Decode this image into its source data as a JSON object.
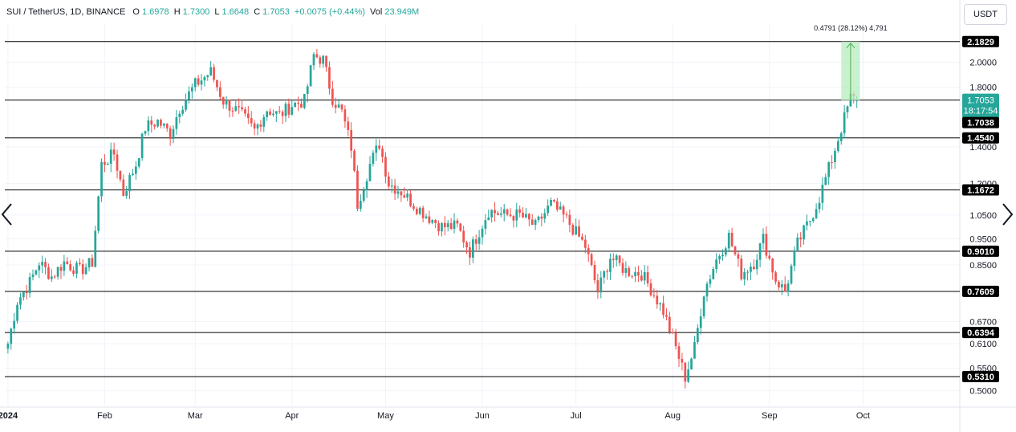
{
  "header": {
    "symbol": "SUI / TetherUS, 1D, BINANCE",
    "o_label": "O",
    "o_value": "1.6978",
    "h_label": "H",
    "h_value": "1.7300",
    "l_label": "L",
    "l_value": "1.6648",
    "c_label": "C",
    "c_value": "1.7053",
    "change": "+0.0075 (+0.44%)",
    "vol_label": "Vol",
    "vol_value": "23.949M"
  },
  "currency_button": "USDT",
  "colors": {
    "up": "#26a69a",
    "down": "#ef5350",
    "level_line": "#000000",
    "measure_fill": "#b7ecbf",
    "measure_line": "#4caf50"
  },
  "chart_data": {
    "type": "candlestick",
    "y_axis_ticks": [
      "2.0000",
      "1.8000",
      "1.4000",
      "1.2000",
      "1.0500",
      "0.9500",
      "0.8500",
      "0.6700",
      "0.6100",
      "0.5500",
      "0.5000"
    ],
    "x_axis_ticks": [
      "2024",
      "Feb",
      "Mar",
      "Apr",
      "May",
      "Jun",
      "Jul",
      "Aug",
      "Sep",
      "Oct"
    ],
    "x_ticks_dates": [
      "2024-01-01",
      "2024-02-01",
      "2024-03-01",
      "2024-04-01",
      "2024-05-01",
      "2024-06-01",
      "2024-07-01",
      "2024-08-01",
      "2024-09-01",
      "2024-10-01"
    ],
    "horizontal_levels": [
      "2.1829",
      "1.7053",
      "1.7038",
      "1.4540",
      "1.1672",
      "0.9010",
      "0.7609",
      "0.6394",
      "0.5310"
    ],
    "horizontal_level_values": [
      2.1829,
      1.7053,
      1.454,
      1.1672,
      0.901,
      0.7609,
      0.6394,
      0.531
    ],
    "current_price": "1.7053",
    "countdown": "18:17:54",
    "measure_label": "0.4791 (28.12%) 4,791",
    "measure_from": 1.7038,
    "measure_to": 2.1829,
    "measure_start_date": "2024-09-24",
    "measure_end_date": "2024-09-30",
    "y_range": [
      0.47,
      2.35
    ],
    "y_scale": "log",
    "close_anchors": [
      [
        "2024-01-01",
        0.61
      ],
      [
        "2024-01-04",
        0.73
      ],
      [
        "2024-01-08",
        0.79
      ],
      [
        "2024-01-11",
        0.86
      ],
      [
        "2024-01-15",
        0.81
      ],
      [
        "2024-01-19",
        0.86
      ],
      [
        "2024-01-24",
        0.83
      ],
      [
        "2024-01-28",
        0.86
      ],
      [
        "2024-01-31",
        1.3
      ],
      [
        "2024-02-04",
        1.36
      ],
      [
        "2024-02-07",
        1.15
      ],
      [
        "2024-02-11",
        1.3
      ],
      [
        "2024-02-14",
        1.52
      ],
      [
        "2024-02-18",
        1.56
      ],
      [
        "2024-02-22",
        1.48
      ],
      [
        "2024-02-25",
        1.65
      ],
      [
        "2024-03-01",
        1.82
      ],
      [
        "2024-03-06",
        1.92
      ],
      [
        "2024-03-10",
        1.7
      ],
      [
        "2024-03-15",
        1.62
      ],
      [
        "2024-03-20",
        1.5
      ],
      [
        "2024-03-24",
        1.64
      ],
      [
        "2024-03-28",
        1.6
      ],
      [
        "2024-04-01",
        1.67
      ],
      [
        "2024-04-05",
        1.7
      ],
      [
        "2024-04-08",
        2.06
      ],
      [
        "2024-04-11",
        2.02
      ],
      [
        "2024-04-14",
        1.72
      ],
      [
        "2024-04-17",
        1.62
      ],
      [
        "2024-04-20",
        1.4
      ],
      [
        "2024-04-22",
        1.1
      ],
      [
        "2024-04-26",
        1.3
      ],
      [
        "2024-04-29",
        1.42
      ],
      [
        "2024-05-02",
        1.2
      ],
      [
        "2024-05-06",
        1.16
      ],
      [
        "2024-05-10",
        1.1
      ],
      [
        "2024-05-14",
        1.05
      ],
      [
        "2024-05-19",
        1.0
      ],
      [
        "2024-05-24",
        1.0
      ],
      [
        "2024-05-28",
        0.9
      ],
      [
        "2024-06-03",
        1.07
      ],
      [
        "2024-06-08",
        1.05
      ],
      [
        "2024-06-13",
        1.05
      ],
      [
        "2024-06-18",
        1.0
      ],
      [
        "2024-06-23",
        1.1
      ],
      [
        "2024-06-28",
        1.03
      ],
      [
        "2024-07-04",
        0.92
      ],
      [
        "2024-07-08",
        0.76
      ],
      [
        "2024-07-12",
        0.88
      ],
      [
        "2024-07-17",
        0.83
      ],
      [
        "2024-07-22",
        0.82
      ],
      [
        "2024-07-25",
        0.77
      ],
      [
        "2024-07-29",
        0.7
      ],
      [
        "2024-08-02",
        0.6
      ],
      [
        "2024-08-05",
        0.53
      ],
      [
        "2024-08-08",
        0.6
      ],
      [
        "2024-08-11",
        0.76
      ],
      [
        "2024-08-15",
        0.87
      ],
      [
        "2024-08-19",
        0.96
      ],
      [
        "2024-08-23",
        0.82
      ],
      [
        "2024-08-27",
        0.86
      ],
      [
        "2024-08-30",
        0.95
      ],
      [
        "2024-09-03",
        0.8
      ],
      [
        "2024-09-06",
        0.76
      ],
      [
        "2024-09-10",
        0.93
      ],
      [
        "2024-09-14",
        1.03
      ],
      [
        "2024-09-17",
        1.13
      ],
      [
        "2024-09-21",
        1.33
      ],
      [
        "2024-09-25",
        1.58
      ],
      [
        "2024-09-27",
        1.72
      ],
      [
        "2024-09-29",
        1.7053
      ]
    ]
  }
}
